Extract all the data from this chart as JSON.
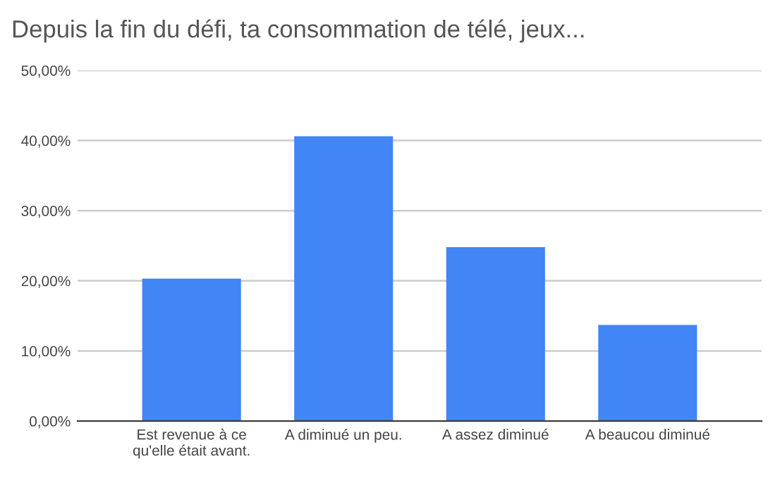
{
  "chart_data": {
    "type": "bar",
    "title": "Depuis la fin du défi, ta consommation de télé, jeux...",
    "categories": [
      "Est revenue à ce\nqu'elle était avant.",
      "A diminué un peu.",
      "A assez diminué",
      "A beaucou diminué"
    ],
    "values": [
      20.3,
      40.6,
      24.8,
      13.7
    ],
    "color": "#4285f4",
    "ylim": [
      0,
      50
    ],
    "yticks": [
      {
        "value": 0,
        "label": "0,00%"
      },
      {
        "value": 10,
        "label": "10,00%"
      },
      {
        "value": 20,
        "label": "20,00%"
      },
      {
        "value": 30,
        "label": "30,00%"
      },
      {
        "value": 40,
        "label": "40,00%"
      },
      {
        "value": 50,
        "label": "50,00%"
      }
    ],
    "grid": "y"
  }
}
